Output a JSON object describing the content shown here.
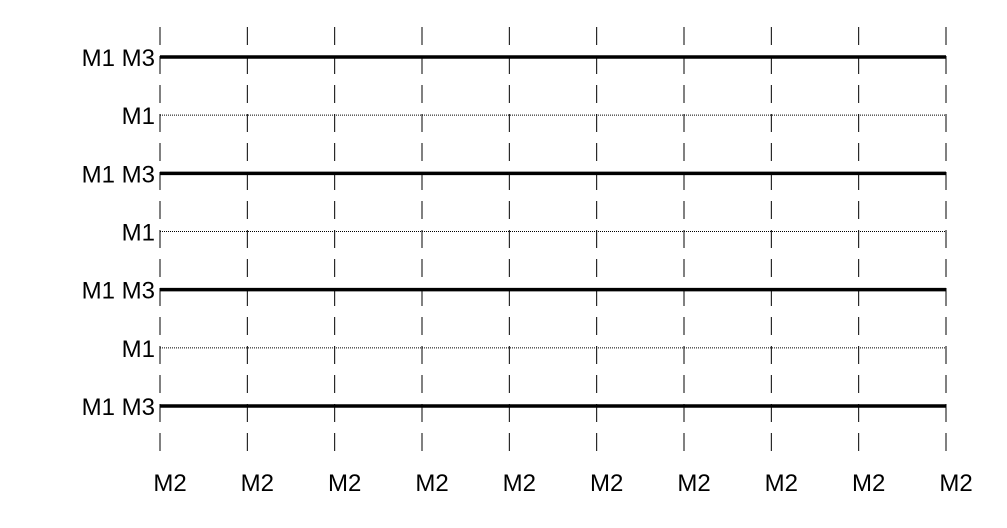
{
  "rows": [
    {
      "label": "M1 M3",
      "style": "thick"
    },
    {
      "label": "M1",
      "style": "dotted"
    },
    {
      "label": "M1 M3",
      "style": "thick"
    },
    {
      "label": "M1",
      "style": "dotted"
    },
    {
      "label": "M1 M3",
      "style": "thick"
    },
    {
      "label": "M1",
      "style": "dotted"
    },
    {
      "label": "M1 M3",
      "style": "thick"
    }
  ],
  "columns": [
    {
      "label": "M2"
    },
    {
      "label": "M2"
    },
    {
      "label": "M2"
    },
    {
      "label": "M2"
    },
    {
      "label": "M2"
    },
    {
      "label": "M2"
    },
    {
      "label": "M2"
    },
    {
      "label": "M2"
    },
    {
      "label": "M2"
    },
    {
      "label": "M2"
    }
  ],
  "colors": {
    "line": "#000000",
    "background": "#ffffff"
  }
}
